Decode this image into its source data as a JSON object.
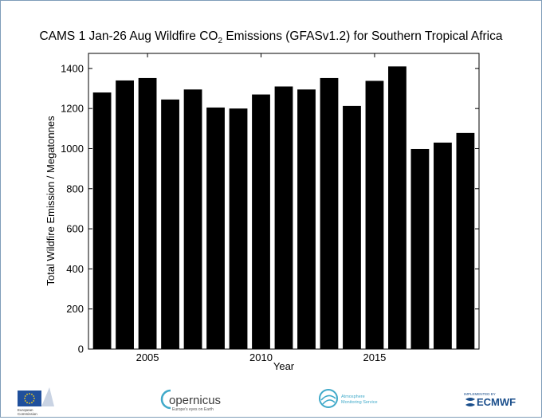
{
  "chart_data": {
    "type": "bar",
    "title_prefix": "CAMS  1 Jan-26 Aug  Wildfire CO",
    "title_sub": "2",
    "title_suffix": " Emissions (GFASv1.2) for Southern Tropical Africa",
    "xlabel": "Year",
    "ylabel": "Total Wildfire Emission / Megatonnes",
    "categories": [
      2003,
      2004,
      2005,
      2006,
      2007,
      2008,
      2009,
      2010,
      2011,
      2012,
      2013,
      2014,
      2015,
      2016,
      2017,
      2018,
      2019
    ],
    "values": [
      1280,
      1340,
      1352,
      1245,
      1295,
      1205,
      1200,
      1270,
      1310,
      1295,
      1352,
      1213,
      1338,
      1410,
      998,
      1030,
      1078
    ],
    "xlim": [
      2002.4,
      2019.6
    ],
    "ylim": [
      0,
      1400
    ],
    "yticks": [
      0,
      200,
      400,
      600,
      800,
      1000,
      1200,
      1400
    ],
    "xticks": [
      2005,
      2010,
      2015
    ],
    "bar_color": "#000000",
    "grid": false
  },
  "footer": {
    "eu_label_1": "European",
    "eu_label_2": "Commission",
    "copernicus_name": "opernicus",
    "copernicus_tagline": "Europe's eyes on Earth",
    "atmosphere_line1": "Atmosphere",
    "atmosphere_line2": "Monitoring Service",
    "ecmwf_small": "IMPLEMENTED BY",
    "ecmwf_name": "ECMWF",
    "eu_blue": "#1f4f9c",
    "eu_star": "#f7d117",
    "cams_teal": "#3fa9c9",
    "ecmwf_blue": "#1b4f8c"
  }
}
